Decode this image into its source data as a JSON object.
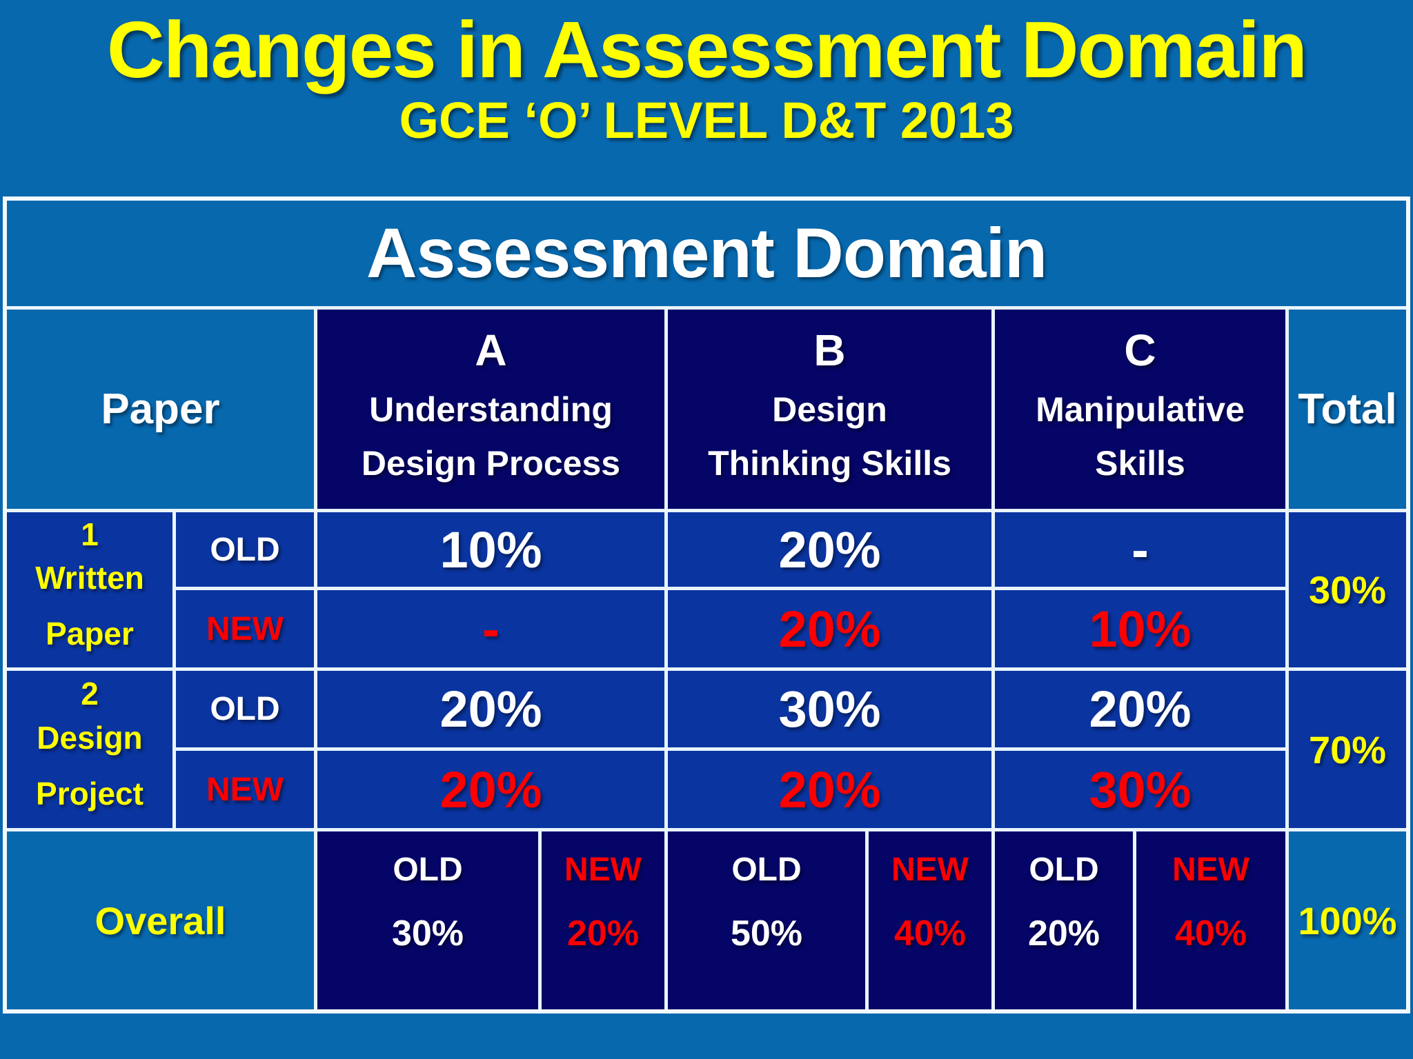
{
  "title": "Changes in Assessment Domain",
  "subtitle": "GCE ‘O’ LEVEL D&T 2013",
  "table": {
    "header": "Assessment Domain",
    "paper_label": "Paper",
    "total_label": "Total",
    "domains": [
      {
        "letter": "A",
        "name": "Understanding\nDesign Process"
      },
      {
        "letter": "B",
        "name": "Design\nThinking Skills"
      },
      {
        "letter": "C",
        "name": "Manipulative\nSkills"
      }
    ],
    "rows": [
      {
        "number": "1",
        "name": "Written\nPaper",
        "old": {
          "label": "OLD",
          "a": "10%",
          "b": "20%",
          "c": "-"
        },
        "new": {
          "label": "NEW",
          "a": "-",
          "b": "20%",
          "c": "10%"
        },
        "total": "30%"
      },
      {
        "number": "2",
        "name": "Design\nProject",
        "old": {
          "label": "OLD",
          "a": "20%",
          "b": "30%",
          "c": "20%"
        },
        "new": {
          "label": "NEW",
          "a": "20%",
          "b": "20%",
          "c": "30%"
        },
        "total": "70%"
      }
    ],
    "overall": {
      "label": "Overall",
      "columns": [
        {
          "old_label": "OLD",
          "old_value": "30%",
          "new_label": "NEW",
          "new_value": "20%"
        },
        {
          "old_label": "OLD",
          "old_value": "50%",
          "new_label": "NEW",
          "new_value": "40%"
        },
        {
          "old_label": "OLD",
          "old_value": "20%",
          "new_label": "NEW",
          "new_value": "40%"
        }
      ],
      "total": "100%"
    }
  },
  "colors": {
    "background": "#0768AE",
    "cell_navy": "#050568",
    "cell_royal": "#0A34A0",
    "title_yellow": "#FFFF00",
    "highlight_red": "#FF0000",
    "text_white": "#FFFFFF",
    "border": "#E9F4FB"
  }
}
